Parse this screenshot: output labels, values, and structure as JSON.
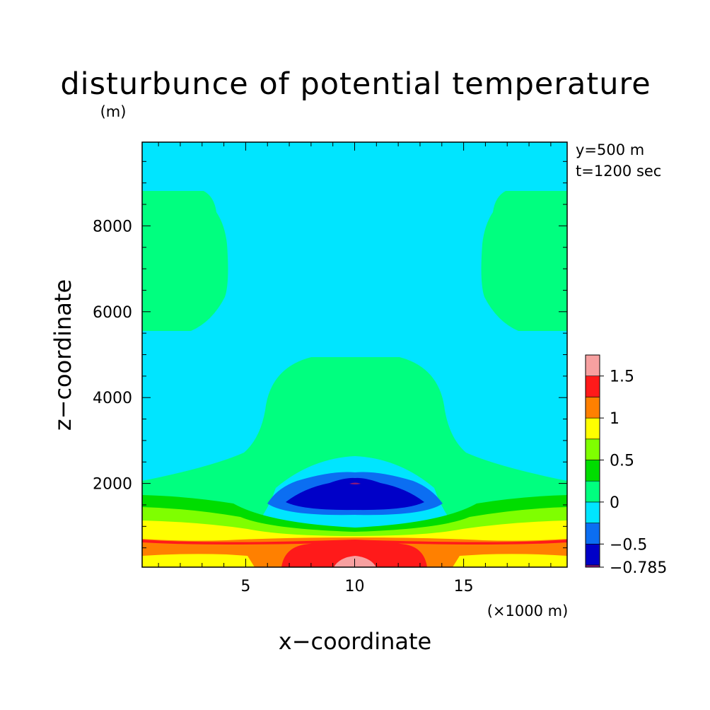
{
  "chart_data": {
    "type": "heatmap",
    "title": "disturbunce of potential temperature",
    "xlabel": "x−coordinate",
    "ylabel": "z−coordinate",
    "x_unit_note": "(×1000 m)",
    "y_unit_note": "(m)",
    "info_lines": [
      "y=500 m",
      "t=1200 sec"
    ],
    "xlim": [
      0.25,
      19.75
    ],
    "ylim": [
      50,
      9950
    ],
    "x_ticks": [
      5,
      10,
      15
    ],
    "x_tick_labels": [
      "5",
      "10",
      "15"
    ],
    "y_ticks": [
      2000,
      4000,
      6000,
      8000
    ],
    "y_tick_labels": [
      "2000",
      "4000",
      "6000",
      "8000"
    ],
    "colorbar": {
      "levels": [
        -0.785,
        -0.75,
        -0.5,
        -0.25,
        0,
        0.25,
        0.5,
        0.75,
        1,
        1.25,
        1.5,
        1.75
      ],
      "colors": [
        "#8b1a7a",
        "#0000c8",
        "#0b6ef2",
        "#00e5ff",
        "#00ff7f",
        "#00dd00",
        "#7fff00",
        "#ffff00",
        "#ff8000",
        "#ff1a1a",
        "#f7a0a0"
      ],
      "tick_values": [
        -0.785,
        -0.5,
        0,
        0.5,
        1,
        1.5
      ],
      "tick_labels": [
        "−0.785",
        "−0.5",
        "0",
        "0.5",
        "1",
        "1.5"
      ]
    },
    "field_description": {
      "positive_surface_layer": "theta' up to about 1.5 near x=10, z<300 m, decreasing upward to 0 near z=1700 m (edges) / 1100 m (center)",
      "cold_core": "theta' minimum about -0.785 centered near x=10, z=1600 m",
      "weak_positive_plume": "theta' 0..0.25 dome over 6<x<14 up to z~5000 m",
      "side_lobes": "theta' 0..0.25 near x<4 and x>16 for 5500<z<8800 m"
    }
  }
}
